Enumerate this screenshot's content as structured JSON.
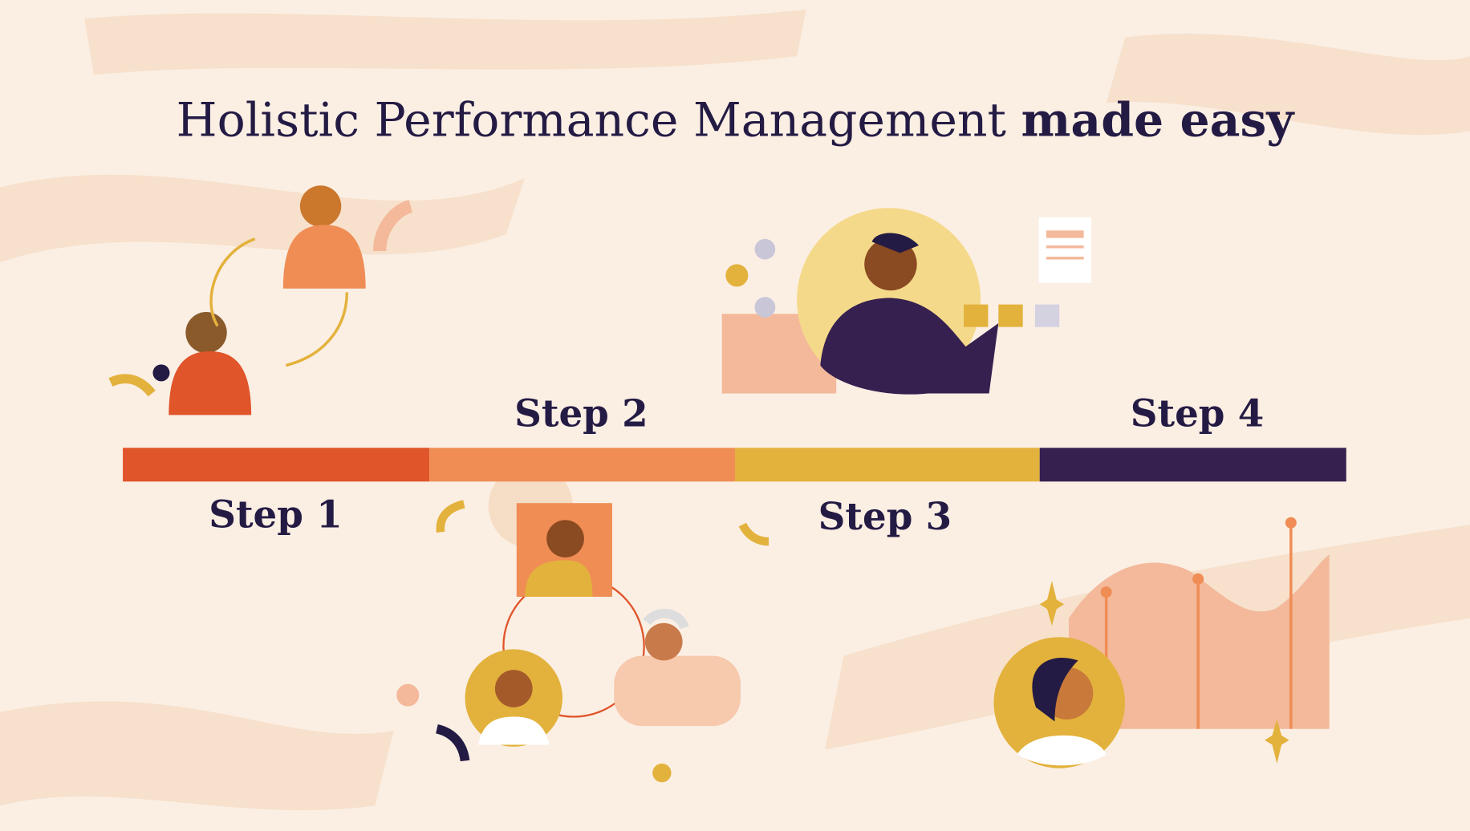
{
  "title": {
    "regular": "Holistic Performance Management",
    "bold": "made easy"
  },
  "steps": [
    {
      "label": "Step 1",
      "color": "#e0552a"
    },
    {
      "label": "Step 2",
      "color": "#ef8d55"
    },
    {
      "label": "Step 3",
      "color": "#e3b23c"
    },
    {
      "label": "Step 4",
      "color": "#35204f"
    }
  ],
  "colors": {
    "background": "#fbefe4",
    "text": "#241b44",
    "peach": "#f3b99a",
    "gold": "#e3b23c"
  }
}
